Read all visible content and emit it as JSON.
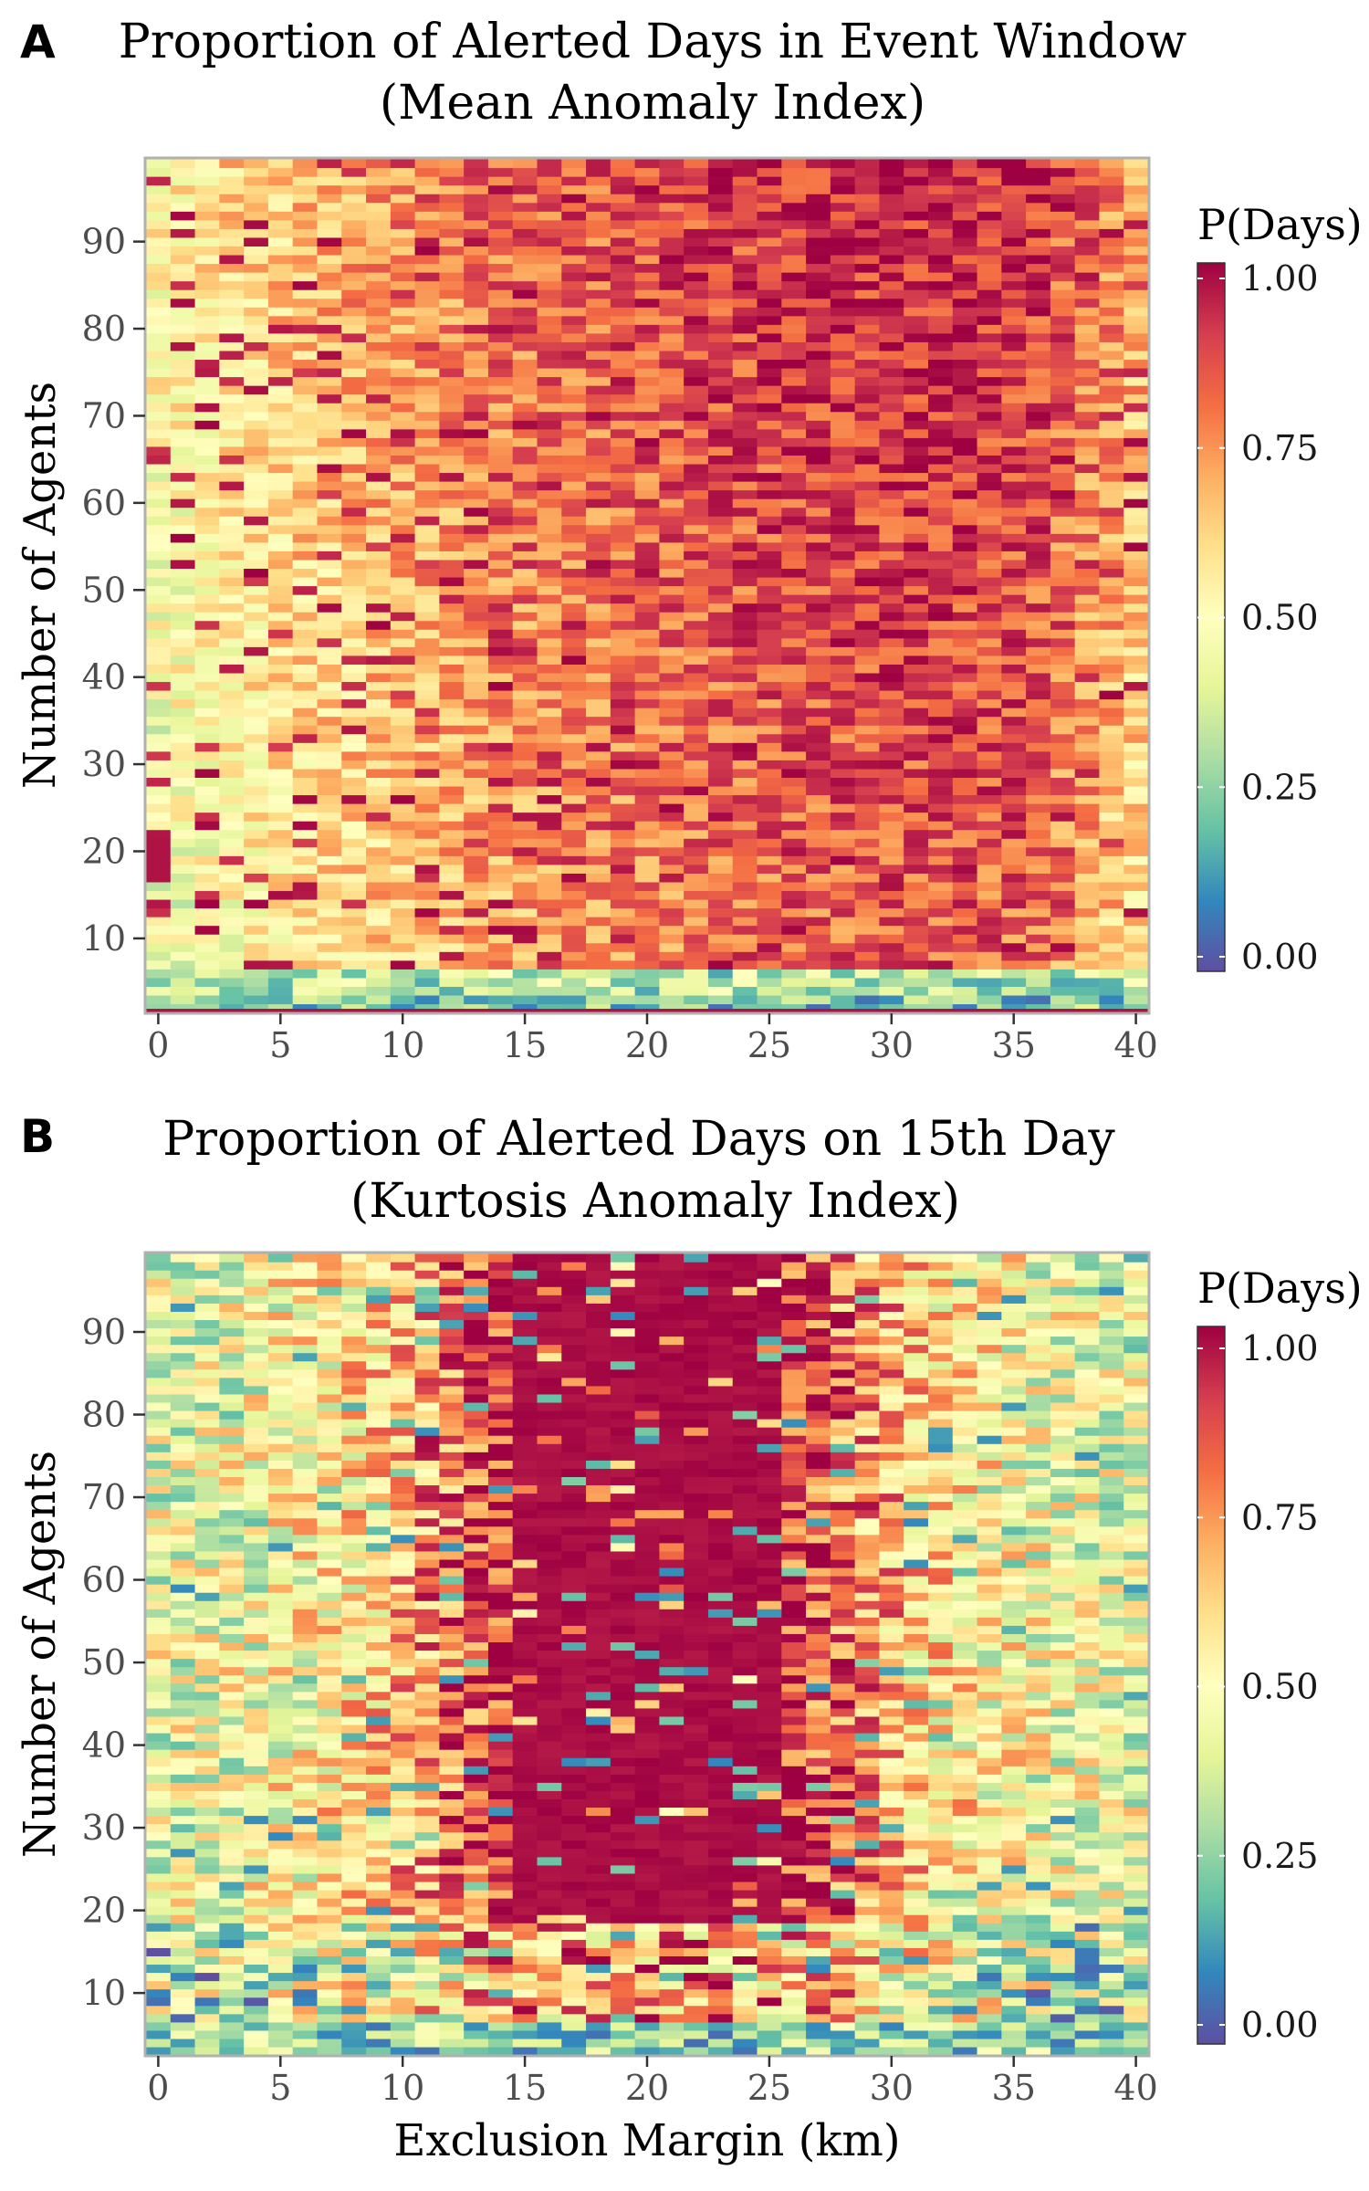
{
  "chart_data": [
    {
      "panel_letter": "A",
      "type": "heatmap",
      "title": "Proportion of Alerted Days in Event Window",
      "subtitle": "(Mean Anomaly Index)",
      "xlabel": "",
      "ylabel": "Number of Agents",
      "x_range": [
        0,
        40
      ],
      "y_range": [
        2,
        99
      ],
      "xlim": [
        -0.5,
        40.5
      ],
      "ylim": [
        1.5,
        99.5
      ],
      "x_ticks": [
        0,
        5,
        10,
        15,
        20,
        25,
        30,
        35,
        40
      ],
      "y_ticks": [
        10,
        20,
        30,
        40,
        50,
        60,
        70,
        80,
        90
      ],
      "legend": {
        "title": "P(Days)",
        "ticks": [
          "0.00",
          "0.25",
          "0.50",
          "0.75",
          "1.00"
        ],
        "placement": "right"
      },
      "colormap": "Spectral (reversed): 0 = dark blue, 0.5 = pale yellow, 1 = dark red",
      "value_pattern": "low (~0.5) at small margins, rising to ~0.85-0.95 toward margins 30-40; lowest values (<0.2) at the bottom rows (agents 2-6)",
      "z_summary_by_margin": [
        0.48,
        0.5,
        0.53,
        0.55,
        0.57,
        0.6,
        0.62,
        0.64,
        0.66,
        0.68,
        0.7,
        0.71,
        0.72,
        0.74,
        0.75,
        0.76,
        0.77,
        0.78,
        0.79,
        0.8,
        0.81,
        0.82,
        0.83,
        0.84,
        0.84,
        0.85,
        0.86,
        0.86,
        0.87,
        0.87,
        0.88,
        0.88,
        0.88,
        0.88,
        0.87,
        0.86,
        0.84,
        0.8,
        0.75,
        0.7,
        0.65
      ]
    },
    {
      "panel_letter": "B",
      "type": "heatmap",
      "title": "Proportion of Alerted Days on 15th Day",
      "subtitle": "(Kurtosis Anomaly Index)",
      "xlabel": "Exclusion Margin (km)",
      "ylabel": "Number of Agents",
      "x_range": [
        0,
        40
      ],
      "y_range": [
        2,
        99
      ],
      "xlim": [
        -0.5,
        40.5
      ],
      "ylim": [
        2.5,
        99.5
      ],
      "x_ticks": [
        0,
        5,
        10,
        15,
        20,
        25,
        30,
        35,
        40
      ],
      "y_ticks": [
        10,
        20,
        30,
        40,
        50,
        60,
        70,
        80,
        90
      ],
      "legend": {
        "title": "P(Days)",
        "ticks": [
          "0.00",
          "0.25",
          "0.50",
          "0.75",
          "1.00"
        ],
        "placement": "right"
      },
      "colormap": "Spectral (reversed): 0 = dark blue, 0.5 = pale yellow, 1 = dark red",
      "value_pattern": "near 1.0 in a central band (margins ~13-27, agents above ~20), noisy mid values (0.3-0.8) at the edges, low values (<0.3) at the bottom rows",
      "z_summary_by_margin": [
        0.45,
        0.45,
        0.46,
        0.47,
        0.48,
        0.5,
        0.52,
        0.55,
        0.58,
        0.62,
        0.68,
        0.74,
        0.8,
        0.86,
        0.9,
        0.93,
        0.95,
        0.96,
        0.97,
        0.97,
        0.97,
        0.97,
        0.97,
        0.96,
        0.95,
        0.93,
        0.9,
        0.86,
        0.8,
        0.74,
        0.68,
        0.62,
        0.58,
        0.55,
        0.52,
        0.5,
        0.48,
        0.47,
        0.46,
        0.45,
        0.45
      ]
    }
  ],
  "colors": {
    "scale_stops": [
      "#5e4fa2",
      "#3288bd",
      "#66c2a5",
      "#abdda4",
      "#e6f598",
      "#ffffbf",
      "#fee08b",
      "#fdae61",
      "#f46d43",
      "#d53e4f",
      "#9e0142"
    ],
    "axis_frame": "#b0b0b0",
    "tick_text": "#4d4d4d",
    "text": "#000000"
  }
}
